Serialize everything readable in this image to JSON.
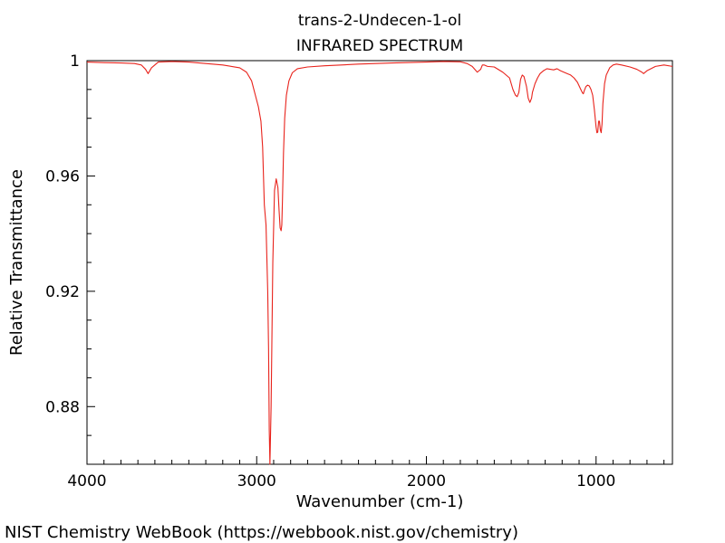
{
  "chart_data": {
    "type": "line",
    "title": "trans-2-Undecen-1-ol",
    "subtitle": "INFRARED SPECTRUM",
    "xlabel": "Wavenumber (cm-1)",
    "ylabel": "Relative Transmittance",
    "xlim": [
      4000,
      550
    ],
    "ylim": [
      0.86,
      1.0
    ],
    "x_ticks": [
      4000,
      3000,
      2000,
      1000
    ],
    "x_tick_labels": [
      "4000",
      "3000",
      "2000",
      "1000"
    ],
    "y_ticks": [
      1.0,
      0.96,
      0.92,
      0.88
    ],
    "y_tick_labels": [
      "1",
      "0.96",
      "0.92",
      "0.88"
    ],
    "grid": false,
    "line_color": "#e8231c",
    "series": [
      {
        "x": [
          4000,
          3900,
          3800,
          3720,
          3680,
          3655,
          3640,
          3620,
          3580,
          3500,
          3400,
          3300,
          3200,
          3100,
          3060,
          3030,
          3010,
          2990,
          2975,
          2965,
          2955,
          2945,
          2935,
          2930,
          2926,
          2922,
          2915,
          2905,
          2895,
          2885,
          2875,
          2868,
          2862,
          2856,
          2852,
          2848,
          2842,
          2835,
          2825,
          2810,
          2790,
          2760,
          2700,
          2600,
          2400,
          2200,
          2000,
          1900,
          1800,
          1760,
          1730,
          1700,
          1680,
          1670,
          1660,
          1640,
          1600,
          1550,
          1510,
          1490,
          1475,
          1465,
          1455,
          1445,
          1435,
          1425,
          1410,
          1400,
          1390,
          1380,
          1375,
          1370,
          1360,
          1345,
          1330,
          1310,
          1290,
          1270,
          1250,
          1230,
          1210,
          1190,
          1170,
          1150,
          1130,
          1110,
          1090,
          1080,
          1075,
          1070,
          1060,
          1050,
          1040,
          1030,
          1020,
          1010,
          1000,
          995,
          990,
          985,
          980,
          975,
          970,
          965,
          960,
          950,
          940,
          920,
          900,
          880,
          850,
          800,
          760,
          730,
          720,
          700,
          650,
          600,
          550
        ],
        "y": [
          0.9995,
          0.9993,
          0.9992,
          0.999,
          0.9985,
          0.997,
          0.9955,
          0.9975,
          0.9995,
          0.9997,
          0.9995,
          0.999,
          0.9985,
          0.9975,
          0.996,
          0.993,
          0.9885,
          0.984,
          0.979,
          0.97,
          0.95,
          0.943,
          0.92,
          0.9,
          0.872,
          0.86,
          0.88,
          0.93,
          0.955,
          0.959,
          0.956,
          0.948,
          0.942,
          0.941,
          0.943,
          0.952,
          0.968,
          0.98,
          0.988,
          0.993,
          0.9958,
          0.9972,
          0.9978,
          0.9982,
          0.9988,
          0.9992,
          0.9995,
          0.9997,
          0.9996,
          0.999,
          0.998,
          0.996,
          0.997,
          0.9985,
          0.9985,
          0.998,
          0.9978,
          0.996,
          0.994,
          0.99,
          0.988,
          0.9875,
          0.989,
          0.9935,
          0.995,
          0.9945,
          0.991,
          0.987,
          0.9855,
          0.987,
          0.989,
          0.99,
          0.992,
          0.994,
          0.9955,
          0.9965,
          0.9972,
          0.997,
          0.9968,
          0.9972,
          0.9965,
          0.996,
          0.9955,
          0.995,
          0.994,
          0.9925,
          0.99,
          0.9888,
          0.9885,
          0.9895,
          0.991,
          0.9915,
          0.9912,
          0.99,
          0.988,
          0.983,
          0.977,
          0.975,
          0.9752,
          0.979,
          0.979,
          0.976,
          0.975,
          0.978,
          0.985,
          0.992,
          0.995,
          0.9975,
          0.9985,
          0.9988,
          0.9985,
          0.9978,
          0.997,
          0.996,
          0.9955,
          0.9965,
          0.998,
          0.9985,
          0.998
        ]
      }
    ]
  },
  "footer": {
    "source": "NIST Chemistry WebBook (https://webbook.nist.gov/chemistry)"
  }
}
